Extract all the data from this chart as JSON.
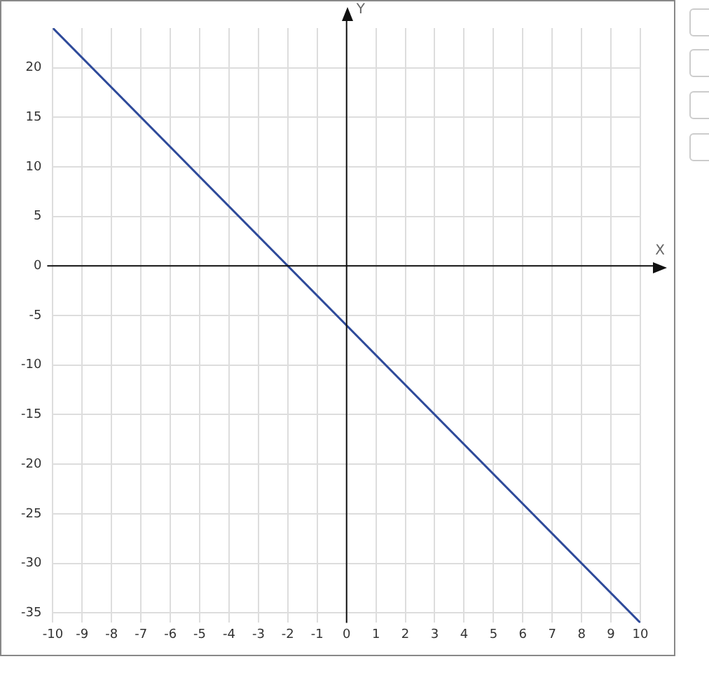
{
  "chart_data": {
    "type": "line",
    "xlabel": "X",
    "ylabel": "Y",
    "x": [
      -10,
      10
    ],
    "series": [
      {
        "color": "#2e4a9a",
        "values": [
          24,
          -36
        ]
      }
    ],
    "xlim": [
      -10,
      10
    ],
    "ylim": [
      -36,
      24
    ],
    "xticks": [
      -10,
      -9,
      -8,
      -7,
      -6,
      -5,
      -4,
      -3,
      -2,
      -1,
      0,
      1,
      2,
      3,
      4,
      5,
      6,
      7,
      8,
      9,
      10
    ],
    "yticks": [
      -35,
      -30,
      -25,
      -20,
      -15,
      -10,
      -5,
      0,
      5,
      10,
      15,
      20
    ],
    "grid": true,
    "legend": false,
    "marker": "none",
    "line_style": "solid"
  }
}
